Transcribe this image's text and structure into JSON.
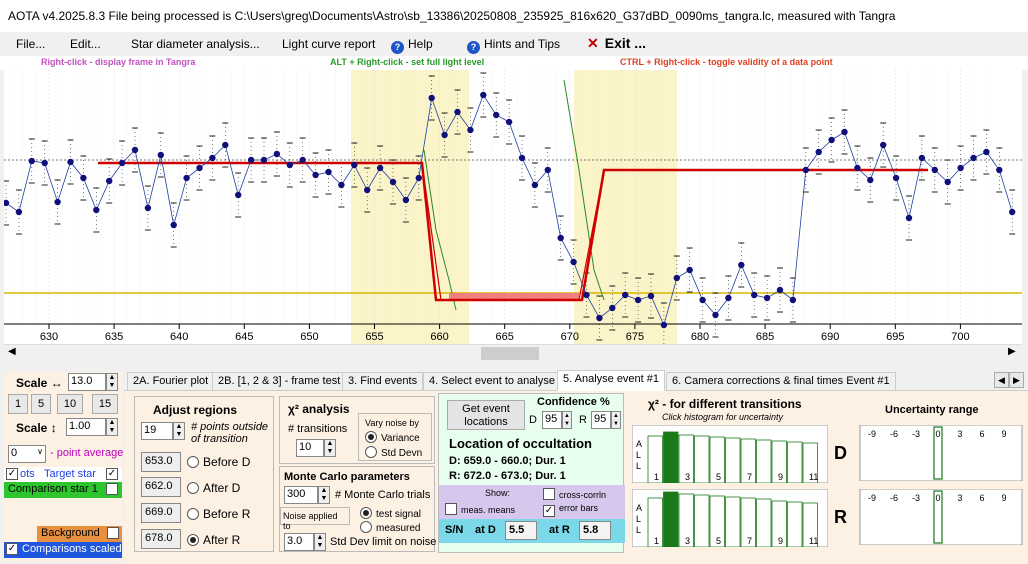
{
  "window": {
    "title": "AOTA v4.2025.8.3     File being processed is C:\\Users\\greg\\Documents\\Astro\\sb_13386\\20250808_235925_816x620_G37dBD_0090ms_tangra.lc, measured with Tangra"
  },
  "menu": {
    "file": "File...",
    "edit": "Edit...",
    "star_diameter": "Star diameter analysis...",
    "light_curve": "Light curve report",
    "help": "Help",
    "hints": "Hints and Tips",
    "exit": "Exit ..."
  },
  "hints": {
    "right_click": "Right-click  -  display frame in Tangra",
    "alt_right_click": "ALT + Right-click  -  set full light level",
    "ctrl_right_click": "CTRL + Right-click  -  toggle validity of a data point"
  },
  "axis": {
    "ticks": [
      "630",
      "635",
      "640",
      "645",
      "650",
      "655",
      "660",
      "665",
      "670",
      "675",
      "680",
      "685",
      "690",
      "695",
      "700"
    ]
  },
  "left_panel": {
    "scale_h_label": "Scale ↔",
    "scale_h_value": "13.0",
    "scale_btns": [
      "1",
      "5",
      "10",
      "15"
    ],
    "scale_v_label": "Scale ↕",
    "scale_v_value": "1.00",
    "point_avg_value": "0",
    "point_avg_label": "- point average",
    "target_prefix": "ots",
    "target_label": "Target star",
    "comparison_label": "Comparison star 1",
    "background_label": "Background",
    "comparisons_scaled": "Comparisons scaled"
  },
  "tabs": [
    "2A. Fourier plot",
    "2B. [1, 2 & 3] - frame test",
    "3. Find events",
    "4. Select event to analyse",
    "5. Analyse event #1",
    "6. Camera corrections & final times Event #1"
  ],
  "adjust": {
    "title": "Adjust regions",
    "points_value": "19",
    "points_label": "# points outside of transition",
    "rows": [
      {
        "value": "653.0",
        "label": "Before D"
      },
      {
        "value": "662.0",
        "label": "After D"
      },
      {
        "value": "669.0",
        "label": "Before R"
      },
      {
        "value": "678.0",
        "label": "After R"
      }
    ]
  },
  "chi": {
    "title": "χ² analysis",
    "transitions_label": "# transitions",
    "transitions_value": "10",
    "vary_label": "Vary noise by",
    "variance": "Variance",
    "stddev": "Std Devn"
  },
  "monte": {
    "title": "Monte Carlo parameters",
    "trials_value": "300",
    "trials_label": "# Monte Carlo trials",
    "noise_label": "Noise applied to",
    "test_signal": "test signal",
    "measured": "measured",
    "stddev_value": "3.0",
    "stddev_label": "Std Dev limit on noise"
  },
  "event": {
    "get_locations": "Get event locations",
    "confidence": "Confidence %",
    "d_label": "D",
    "d_value": "95",
    "r_label": "R",
    "r_value": "95",
    "location_title": "Location of occultation",
    "d_line": "D: 659.0 - 660.0; Dur. 1",
    "r_line": "R: 672.0 - 673.0; Dur. 1",
    "show": "Show:",
    "cross_corr": "cross-corrln",
    "meas_means": "meas. means",
    "error_bars": "error bars",
    "sn_label": "S/N",
    "at_d": "at D",
    "sn_d": "5.5",
    "at_r": "at R",
    "sn_r": "5.8"
  },
  "chi2": {
    "title": "χ² - for different transitions",
    "subtitle": "Click histogram for uncertainty",
    "all": "A L L",
    "xlabels": [
      "1",
      "3",
      "5",
      "7",
      "9",
      "11"
    ],
    "d_label": "D",
    "r_label": "R"
  },
  "uncertainty": {
    "title": "Uncertainty range",
    "ticks": [
      "-9",
      "-6",
      "-3",
      "0",
      "3",
      "6",
      "9"
    ]
  }
}
